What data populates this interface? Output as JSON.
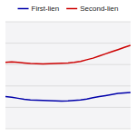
{
  "chart_data": {
    "type": "line",
    "categories": [
      null,
      null,
      null,
      null,
      null,
      null,
      null,
      null,
      null,
      null,
      null,
      null,
      null,
      null,
      null,
      null,
      null,
      null,
      null,
      null,
      null
    ],
    "series": [
      {
        "name": "First-lien",
        "color": "#0000aa",
        "values": [
          0.3,
          0.295,
          0.285,
          0.275,
          0.27,
          0.268,
          0.265,
          0.262,
          0.26,
          0.258,
          0.26,
          0.265,
          0.27,
          0.278,
          0.29,
          0.3,
          0.31,
          0.32,
          0.33,
          0.335,
          0.34
        ]
      },
      {
        "name": "Second-lien",
        "color": "#cc0000",
        "values": [
          0.62,
          0.625,
          0.62,
          0.615,
          0.61,
          0.608,
          0.605,
          0.608,
          0.61,
          0.612,
          0.615,
          0.62,
          0.63,
          0.645,
          0.66,
          0.68,
          0.7,
          0.72,
          0.74,
          0.76,
          0.78
        ]
      }
    ],
    "ylim": [
      0.0,
      1.0
    ],
    "yticks": [
      0.0,
      0.2,
      0.4,
      0.6,
      0.8,
      1.0
    ],
    "grid": true,
    "legend": "top",
    "tick_labels": false
  }
}
